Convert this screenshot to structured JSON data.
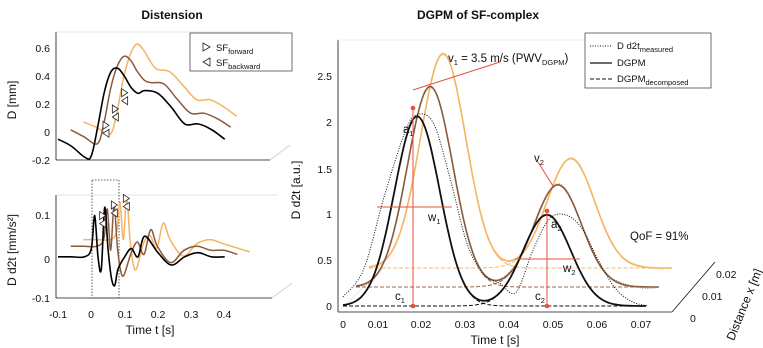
{
  "chart_data": [
    {
      "type": "line",
      "panel": "left",
      "title": "Distension",
      "xlabel": "Time t [s]",
      "x_ticks": [
        "-0.1",
        "0",
        "0.1",
        "0.2",
        "0.3",
        "0.4"
      ],
      "xlim": [
        -0.1,
        0.5
      ],
      "legend": {
        "placement": "top-right",
        "entries": [
          {
            "base": "SF",
            "sub": "forward",
            "marker": "triangle-right"
          },
          {
            "base": "SF",
            "sub": "backward",
            "marker": "triangle-left"
          }
        ]
      },
      "subplots": [
        {
          "ylabel": "D [mm]",
          "y_ticks": [
            "0.6",
            "0.4",
            "0.2",
            "0",
            "-0.2"
          ],
          "ylim": [
            -0.2,
            0.65
          ],
          "series": [
            {
              "color": "#000000",
              "x": [
                -0.1,
                -0.06,
                -0.02,
                0.0,
                0.02,
                0.04,
                0.06,
                0.08,
                0.1,
                0.12,
                0.14,
                0.16,
                0.2,
                0.24,
                0.28,
                0.32,
                0.36,
                0.4
              ],
              "y": [
                -0.05,
                -0.1,
                -0.18,
                -0.17,
                0.05,
                0.3,
                0.44,
                0.46,
                0.4,
                0.32,
                0.28,
                0.3,
                0.28,
                0.18,
                0.06,
                0.06,
                0.02,
                -0.05
              ]
            },
            {
              "color": "#8b5a3c",
              "x": [
                -0.08,
                -0.04,
                0.0,
                0.02,
                0.04,
                0.06,
                0.08,
                0.1,
                0.12,
                0.14,
                0.16,
                0.2,
                0.24,
                0.28,
                0.32,
                0.36,
                0.4
              ],
              "y": [
                0.0,
                -0.05,
                -0.1,
                0.05,
                0.3,
                0.46,
                0.53,
                0.5,
                0.42,
                0.36,
                0.34,
                0.33,
                0.22,
                0.12,
                0.12,
                0.08,
                0.02
              ]
            },
            {
              "color": "#f5b461",
              "x": [
                -0.06,
                -0.02,
                0.02,
                0.04,
                0.06,
                0.08,
                0.1,
                0.12,
                0.14,
                0.16,
                0.2,
                0.24,
                0.28,
                0.32,
                0.36,
                0.4
              ],
              "y": [
                0.04,
                0.0,
                -0.05,
                0.1,
                0.35,
                0.52,
                0.6,
                0.56,
                0.48,
                0.42,
                0.4,
                0.3,
                0.2,
                0.2,
                0.15,
                0.08
              ]
            }
          ]
        },
        {
          "ylabel": "D d2t [mm/s²]",
          "y_ticks": [
            "0.1",
            "0",
            "-0.1"
          ],
          "ylim": [
            -0.1,
            0.15
          ],
          "series": [
            {
              "color": "#000000",
              "x": [
                -0.1,
                -0.06,
                -0.02,
                0.0,
                0.01,
                0.02,
                0.03,
                0.04,
                0.05,
                0.06,
                0.07,
                0.08,
                0.1,
                0.12,
                0.14,
                0.16,
                0.2,
                0.24,
                0.28,
                0.32,
                0.36,
                0.4
              ],
              "y": [
                0.0,
                0.0,
                0.0,
                0.02,
                0.1,
                0.0,
                -0.03,
                0.12,
                0.02,
                -0.05,
                -0.07,
                -0.03,
                0.0,
                0.02,
                0.0,
                0.05,
                0.01,
                -0.02,
                0.0,
                0.01,
                0.0,
                0.0
              ]
            },
            {
              "color": "#8b5a3c",
              "x": [
                -0.08,
                -0.04,
                0.0,
                0.02,
                0.03,
                0.04,
                0.05,
                0.06,
                0.07,
                0.08,
                0.1,
                0.12,
                0.14,
                0.16,
                0.18,
                0.22,
                0.26,
                0.3,
                0.34,
                0.38,
                0.42
              ],
              "y": [
                0.02,
                0.02,
                0.02,
                0.04,
                0.11,
                0.01,
                0.12,
                0.02,
                -0.04,
                -0.05,
                0.0,
                0.03,
                0.0,
                0.06,
                0.02,
                -0.02,
                0.01,
                0.02,
                0.01,
                0.01,
                0.0
              ]
            },
            {
              "color": "#f5b461",
              "x": [
                -0.06,
                -0.02,
                0.02,
                0.04,
                0.05,
                0.06,
                0.07,
                0.08,
                0.09,
                0.1,
                0.12,
                0.14,
                0.16,
                0.18,
                0.2,
                0.24,
                0.28,
                0.32,
                0.36,
                0.4,
                0.44
              ],
              "y": [
                0.03,
                0.03,
                0.03,
                0.05,
                0.12,
                0.03,
                0.13,
                0.03,
                -0.03,
                -0.04,
                0.02,
                0.04,
                0.01,
                0.07,
                0.03,
                -0.01,
                0.02,
                0.03,
                0.02,
                0.01,
                0.0
              ]
            }
          ]
        }
      ]
    },
    {
      "type": "line",
      "panel": "right",
      "title": "DGPM of SF-complex",
      "xlabel": "Time t [s]",
      "ylabel": "D d2t [a.u.]",
      "zlabel": "Distance x [m]",
      "x_ticks": [
        "0",
        "0.01",
        "0.02",
        "0.03",
        "0.04",
        "0.05",
        "0.06",
        "0.07"
      ],
      "y_ticks": [
        "0",
        "0.5",
        "1",
        "1.5",
        "2",
        "2.5"
      ],
      "z_ticks": [
        "0",
        "0.01",
        "0.02"
      ],
      "xlim": [
        0,
        0.075
      ],
      "ylim": [
        0,
        2.6
      ],
      "legend": {
        "placement": "top-right",
        "entries": [
          {
            "base": "D d2t",
            "sub": "measured",
            "style": "dotted"
          },
          {
            "base": "DGPM",
            "sub": "",
            "style": "solid"
          },
          {
            "base": "DGPM",
            "sub": "decomposed",
            "style": "dashed"
          }
        ]
      },
      "annotations": {
        "velocity": {
          "text": "v",
          "sub": "1",
          "rest": " = 3.5 m/s (PWV",
          "sub2": "DGPM",
          "close": ")"
        },
        "v2": {
          "text": "v",
          "sub": "2"
        },
        "a1": {
          "text": "a",
          "sub": "1"
        },
        "a2": {
          "text": "a",
          "sub": "2"
        },
        "w1": {
          "text": "w",
          "sub": "1"
        },
        "w2": {
          "text": "w",
          "sub": "2"
        },
        "c1": {
          "text": "c",
          "sub": "1"
        },
        "c2": {
          "text": "c",
          "sub": "2"
        },
        "qof": "QoF = 91%"
      },
      "series": [
        {
          "color": "#000000",
          "x": [
            0.0,
            0.005,
            0.01,
            0.015,
            0.018,
            0.022,
            0.026,
            0.03,
            0.034,
            0.038,
            0.042,
            0.046,
            0.05,
            0.054,
            0.058,
            0.062,
            0.066,
            0.07,
            0.074
          ],
          "y": [
            0.1,
            0.4,
            1.2,
            1.9,
            2.1,
            2.0,
            1.4,
            0.7,
            0.35,
            0.25,
            0.15,
            0.6,
            0.95,
            1.0,
            0.85,
            0.5,
            0.2,
            0.05,
            0.0
          ]
        },
        {
          "color": "#8b5a3c",
          "z": 0.01
        },
        {
          "color": "#f5b461",
          "z": 0.02
        }
      ]
    }
  ]
}
